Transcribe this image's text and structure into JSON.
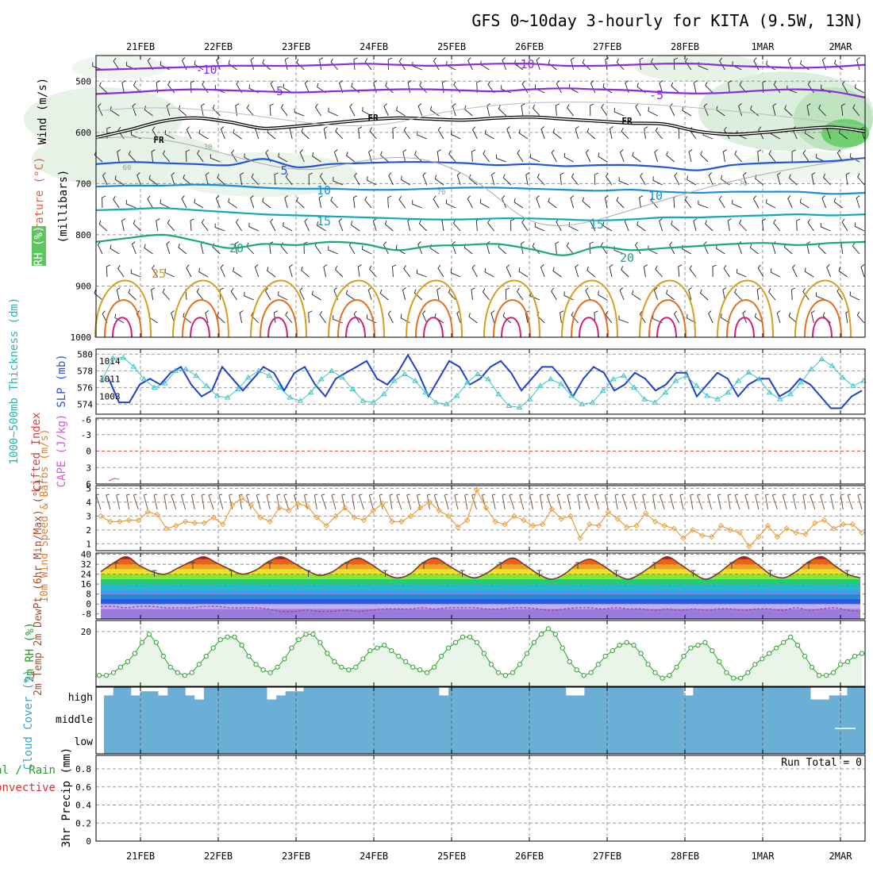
{
  "title": "GFS 0~10day 3-hourly for KITA (9.5W, 13N)",
  "dates": [
    "21FEB",
    "22FEB",
    "23FEB",
    "24FEB",
    "25FEB",
    "26FEB",
    "27FEB",
    "28FEB",
    "1MAR",
    "2MAR"
  ],
  "colors": {
    "grid": "#999999",
    "rh_fill": "#5fc65f",
    "temp_cold": "#8a2be2",
    "temp_fr": "#000000",
    "temp_mid": "#2255dd",
    "temp_warm": "#d4a020",
    "slp": "#1f3fcc",
    "thickness": "#3fc4c4",
    "wind10": "#e8a040",
    "t2m": "#7a3a2a",
    "rh2m": "#2aa02a",
    "cloud": "#6baed6"
  },
  "chart_data": [
    {
      "type": "line",
      "panel": "upper-air",
      "ylabel_parts": [
        "Wind (m/s)",
        "Temperature (°C)",
        "RH (%)",
        "(millibars)"
      ],
      "yticks": [
        "500",
        "600",
        "700",
        "800",
        "900",
        "1000"
      ],
      "ylim": [
        1000,
        450
      ],
      "isotherm_labels": [
        "-10",
        "-10",
        "-5",
        "-5",
        "FR",
        "FR",
        "FR",
        "5",
        "10",
        "10",
        "15",
        "15",
        "20",
        "20",
        "25"
      ],
      "rh_labels": [
        "30",
        "60",
        "70",
        "70"
      ],
      "isotherms": [
        {
          "name": "-10",
          "p": [
            478,
            476,
            474,
            472,
            470,
            470,
            470,
            468,
            466,
            468,
            470,
            468,
            466,
            466,
            470,
            470,
            468,
            466,
            466,
            470,
            472,
            474,
            472,
            468
          ]
        },
        {
          "name": "-5",
          "p": [
            525,
            522,
            518,
            516,
            518,
            520,
            522,
            520,
            518,
            516,
            516,
            518,
            520,
            516,
            514,
            516,
            518,
            522,
            524,
            522,
            518,
            516,
            520,
            532
          ]
        },
        {
          "name": "FR",
          "p": [
            610,
            595,
            578,
            572,
            580,
            592,
            588,
            582,
            576,
            572,
            574,
            576,
            572,
            570,
            574,
            578,
            582,
            584,
            598,
            604,
            600,
            594,
            590,
            598
          ]
        },
        {
          "name": "5",
          "p": [
            662,
            658,
            660,
            662,
            664,
            652,
            668,
            662,
            660,
            658,
            658,
            660,
            664,
            662,
            666,
            664,
            664,
            668,
            674,
            664,
            660,
            658,
            656,
            650
          ]
        },
        {
          "name": "10",
          "p": [
            706,
            704,
            704,
            702,
            704,
            708,
            710,
            710,
            712,
            712,
            710,
            708,
            708,
            710,
            712,
            714,
            712,
            716,
            718,
            716,
            716,
            716,
            720,
            718
          ]
        },
        {
          "name": "15",
          "p": [
            752,
            750,
            748,
            752,
            756,
            760,
            762,
            764,
            766,
            768,
            770,
            770,
            768,
            768,
            770,
            772,
            770,
            766,
            766,
            764,
            762,
            760,
            762,
            760
          ]
        },
        {
          "name": "20",
          "p": [
            814,
            806,
            800,
            812,
            826,
            818,
            820,
            814,
            818,
            830,
            822,
            820,
            818,
            828,
            840,
            824,
            830,
            826,
            822,
            818,
            816,
            820,
            816,
            814
          ]
        }
      ]
    },
    {
      "type": "line",
      "panel": "slp-thickness",
      "ylabel": "SLP (mb)",
      "ylabel2": "1000~500mb Thickness (dm)",
      "yticks_left": [
        "574",
        "576",
        "578",
        "580"
      ],
      "yticks_right": [
        "1008",
        "1011",
        "1014"
      ],
      "series": [
        {
          "name": "SLP (mb)",
          "values": [
            1011,
            1007,
            1007,
            1010,
            1011,
            1010,
            1012,
            1013,
            1010,
            1008,
            1009,
            1013,
            1011,
            1009,
            1011,
            1013,
            1012,
            1009,
            1012,
            1013,
            1010,
            1008,
            1011,
            1012,
            1013,
            1014,
            1011,
            1010,
            1012,
            1015,
            1012,
            1008,
            1011,
            1014,
            1013,
            1010,
            1011,
            1013,
            1014,
            1012,
            1009,
            1011,
            1013,
            1013,
            1011,
            1008,
            1011,
            1013,
            1012,
            1009,
            1010,
            1012,
            1011,
            1009,
            1010,
            1012,
            1012,
            1008,
            1010,
            1012,
            1011,
            1008,
            1010,
            1011,
            1011,
            1008,
            1009,
            1011,
            1010,
            1008,
            1006,
            1006,
            1008,
            1009
          ]
        },
        {
          "name": "1000~500mb Thickness (dm)",
          "values": [
            577,
            579.5,
            579.6,
            578.5,
            577,
            576,
            576.5,
            578,
            578.2,
            577.4,
            576.2,
            575,
            574.8,
            575.8,
            577.2,
            578,
            577.4,
            576,
            574.8,
            574.4,
            575.4,
            577,
            578,
            577.2,
            575.8,
            574.4,
            574.2,
            575.2,
            576.8,
            577.6,
            576.8,
            575.4,
            574.2,
            574,
            575,
            576.6,
            577.6,
            577,
            575.2,
            573.8,
            573.6,
            574.6,
            576.2,
            577,
            576.4,
            575,
            574,
            574.2,
            575.6,
            577,
            577.4,
            576,
            574.6,
            574.2,
            575.4,
            576.8,
            577.4,
            576.2,
            575,
            574.6,
            575.4,
            576.8,
            577.8,
            577,
            575.4,
            574.6,
            575.2,
            576.6,
            578.2,
            579.4,
            578.6,
            577.2,
            576.2,
            576.8
          ]
        }
      ]
    },
    {
      "type": "line",
      "panel": "stability",
      "ylabel": "Lifted Index",
      "ylabel2": "CAPE (J/kg)",
      "yticks": [
        "-6",
        "-3",
        "0",
        "3",
        "6"
      ],
      "ylim": [
        6,
        -6
      ],
      "series": [
        {
          "name": "Lifted Index",
          "values": [
            0
          ]
        },
        {
          "name": "CAPE (J/kg)",
          "values": [
            0
          ]
        }
      ]
    },
    {
      "type": "line",
      "panel": "wind10",
      "ylabel": "10m Wind Speed & Barbs (m/s)",
      "yticks": [
        "1",
        "2",
        "3",
        "4",
        "5"
      ],
      "ylim": [
        0.5,
        5
      ],
      "series": [
        {
          "name": "10m Wind Speed",
          "values": [
            3.0,
            2.6,
            2.6,
            2.7,
            2.7,
            3.3,
            3.1,
            2.1,
            2.3,
            2.6,
            2.5,
            2.5,
            2.9,
            2.4,
            3.8,
            4.3,
            3.8,
            2.9,
            2.6,
            3.6,
            3.4,
            3.9,
            3.7,
            2.9,
            2.3,
            3.0,
            3.6,
            2.9,
            2.7,
            3.4,
            3.9,
            2.6,
            2.6,
            3.0,
            3.6,
            4.0,
            3.4,
            3.0,
            2.2,
            2.7,
            4.9,
            3.6,
            2.6,
            2.4,
            3.0,
            2.7,
            2.3,
            2.4,
            3.5,
            2.8,
            3.0,
            1.4,
            2.4,
            2.3,
            3.3,
            2.8,
            2.2,
            2.3,
            3.2,
            2.6,
            2.3,
            2.1,
            1.4,
            2.0,
            1.6,
            1.5,
            2.3,
            2.0,
            1.8,
            0.8,
            1.5,
            2.3,
            1.5,
            2.1,
            1.8,
            1.7,
            2.5,
            2.7,
            2.1,
            2.4,
            2.4,
            1.8
          ]
        }
      ]
    },
    {
      "type": "area",
      "panel": "temperature",
      "ylabel": "2m Temp 2m DewPt (6hr Min/Max) (°C)",
      "yticks": [
        "-8",
        "0",
        "8",
        "16",
        "24",
        "32",
        "40"
      ],
      "ylim": [
        -12,
        41
      ],
      "series": [
        {
          "name": "2m Temp",
          "values": [
            26,
            33,
            38,
            31,
            26,
            24,
            29,
            34,
            38,
            33,
            28,
            24,
            27,
            34,
            38,
            33,
            27,
            23,
            26,
            33,
            37,
            32,
            25,
            21,
            24,
            33,
            37,
            31,
            25,
            21,
            25,
            32,
            37,
            31,
            24,
            20,
            24,
            32,
            36,
            31,
            24,
            20,
            25,
            32,
            38,
            32,
            25,
            20,
            25,
            33,
            38,
            32,
            24,
            21,
            26,
            34,
            38,
            31,
            24,
            21
          ]
        },
        {
          "name": "2m DewPt",
          "values": [
            -2,
            -2,
            -3,
            -2,
            -2,
            -3,
            -3,
            -3,
            -2,
            -2,
            -3,
            -3,
            -3,
            -4,
            -6,
            -6,
            -5,
            -6,
            -6,
            -5,
            -6,
            -5,
            -4,
            -4,
            -4,
            -3,
            -4,
            -3,
            -3,
            -3,
            -4,
            -4,
            -3,
            -3,
            -4,
            -5,
            -4,
            -3,
            -3,
            -4,
            -3,
            -4,
            -4,
            -5,
            -4,
            -5,
            -4,
            -5,
            -4,
            -4,
            -5,
            -4,
            -4,
            -5,
            -3,
            -5,
            -4,
            -3,
            -5,
            -6
          ]
        }
      ]
    },
    {
      "type": "area",
      "panel": "rh2m",
      "ylabel": "2m RH (%)",
      "yticks": [
        "20"
      ],
      "ylim": [
        0,
        24
      ],
      "series": [
        {
          "name": "2m RH",
          "values": [
            4,
            4,
            5,
            7,
            9,
            12,
            16,
            19,
            16,
            11,
            7,
            5,
            4,
            5,
            8,
            11,
            14,
            17,
            18,
            18,
            15,
            11,
            8,
            6,
            5,
            7,
            10,
            14,
            17,
            19,
            19,
            16,
            12,
            9,
            7,
            6,
            7,
            10,
            13,
            14,
            15,
            13,
            11,
            9,
            7,
            6,
            5,
            7,
            11,
            14,
            16,
            18,
            18,
            16,
            12,
            8,
            5,
            4,
            5,
            8,
            12,
            16,
            19,
            21,
            19,
            14,
            9,
            6,
            4,
            5,
            8,
            11,
            13,
            15,
            16,
            15,
            12,
            8,
            5,
            3,
            4,
            7,
            11,
            14,
            15,
            16,
            13,
            9,
            5,
            3,
            3,
            5,
            8,
            10,
            12,
            14,
            16,
            18,
            15,
            11,
            7,
            4,
            4,
            5,
            8,
            9,
            11,
            12
          ]
        }
      ]
    },
    {
      "type": "bar",
      "panel": "cloud",
      "ylabel": "Cloud Cover (%)",
      "levels": [
        "high",
        "middle",
        "low"
      ],
      "series": [
        {
          "name": "high",
          "values": [
            60,
            100,
            100,
            60,
            80,
            80,
            60,
            100,
            100,
            60,
            40,
            100,
            100,
            100,
            100,
            100,
            100,
            100,
            40,
            60,
            80,
            80,
            100,
            100,
            100,
            100,
            100,
            100,
            100,
            100,
            100,
            100,
            100,
            100,
            100,
            100,
            100,
            60,
            100,
            100,
            100,
            100,
            100,
            100,
            100,
            100,
            100,
            100,
            100,
            100,
            100,
            60,
            60,
            100,
            100,
            100,
            100,
            100,
            100,
            100,
            100,
            100,
            100,
            100,
            60,
            100,
            100,
            100,
            100,
            100,
            100,
            100,
            100,
            100,
            100,
            100,
            100,
            100,
            40,
            40,
            60,
            60,
            100,
            100
          ]
        },
        {
          "name": "middle",
          "values": [
            100,
            100,
            100,
            100,
            100,
            100,
            100,
            100,
            100,
            100,
            100,
            100,
            100,
            100,
            100,
            100,
            100,
            100,
            100,
            100,
            100,
            100,
            100,
            100,
            100,
            100,
            100,
            100,
            100,
            100,
            100,
            100,
            100,
            100,
            100,
            100,
            100,
            100,
            100,
            100,
            100,
            100,
            100,
            100,
            100,
            100,
            100,
            100,
            100,
            100,
            100,
            100,
            100,
            100,
            100,
            100,
            100,
            100,
            100,
            100,
            100,
            100,
            100,
            100,
            100,
            100,
            100,
            100,
            100,
            100,
            100,
            100,
            100,
            100,
            100,
            100,
            100,
            100,
            100,
            100,
            100,
            100,
            90,
            100
          ]
        },
        {
          "name": "low",
          "values": [
            100,
            100,
            100,
            100,
            100,
            100,
            100,
            100,
            100,
            100,
            100,
            100,
            100,
            100,
            100,
            100,
            100,
            100,
            100,
            100,
            100,
            100,
            100,
            100,
            100,
            100,
            100,
            100,
            100,
            100,
            100,
            100,
            100,
            100,
            100,
            100,
            100,
            100,
            100,
            100,
            100,
            100,
            100,
            100,
            100,
            100,
            100,
            100,
            100,
            100,
            100,
            100,
            100,
            100,
            100,
            100,
            100,
            100,
            100,
            100,
            100,
            100,
            100,
            100,
            100,
            100,
            100,
            100,
            100,
            100,
            100,
            100,
            100,
            100,
            100,
            100,
            100,
            100,
            100,
            100,
            100,
            100,
            100,
            100
          ]
        }
      ]
    },
    {
      "type": "bar",
      "panel": "precip",
      "ylabel": "3hr Precip (mm)",
      "legend": [
        "Total / Rain",
        "Convective"
      ],
      "run_total": "Run Total = 0",
      "yticks": [
        "0",
        "0.2",
        "0.4",
        "0.6",
        "0.8"
      ],
      "ylim": [
        0,
        0.95
      ],
      "series": [
        {
          "name": "Total / Rain",
          "values": [
            0
          ]
        },
        {
          "name": "Convective",
          "values": [
            0
          ]
        }
      ]
    }
  ]
}
